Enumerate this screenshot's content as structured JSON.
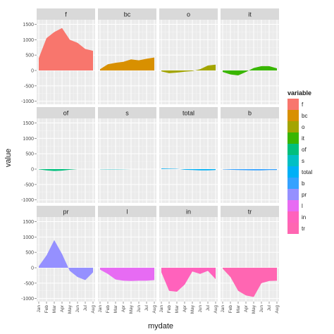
{
  "chart_data": {
    "type": "area",
    "facet_layout": "wrap",
    "xlabel": "mydate",
    "ylabel": "value",
    "x": [
      "Jan",
      "Feb",
      "Mar",
      "Apr",
      "May",
      "Jun",
      "Jul",
      "Aug"
    ],
    "ylim": [
      -1100,
      1650
    ],
    "yticks": [
      -1000,
      -500,
      0,
      500,
      1000,
      1500
    ],
    "ytick_labels": [
      "-1000",
      "-500",
      "0",
      "500",
      "1000",
      "1500"
    ],
    "legend_title": "variable",
    "legend_position": "right",
    "grid": true,
    "series": [
      {
        "name": "f",
        "color": "#F8766D",
        "values": [
          400,
          1050,
          1250,
          1380,
          1000,
          900,
          700,
          640
        ]
      },
      {
        "name": "bc",
        "color": "#D89000",
        "values": [
          40,
          200,
          250,
          280,
          360,
          330,
          380,
          420
        ]
      },
      {
        "name": "o",
        "color": "#A3A500",
        "values": [
          -30,
          -90,
          -70,
          -40,
          -20,
          40,
          160,
          190
        ]
      },
      {
        "name": "it",
        "color": "#39B600",
        "values": [
          -50,
          -130,
          -160,
          -50,
          80,
          140,
          140,
          70
        ]
      },
      {
        "name": "of",
        "color": "#00BF7D",
        "values": [
          -10,
          -40,
          -60,
          -50,
          -20,
          0,
          null,
          null
        ]
      },
      {
        "name": "s",
        "color": "#00BFC4",
        "values": [
          -5,
          -10,
          -10,
          -5,
          0,
          0,
          null,
          null
        ]
      },
      {
        "name": "total",
        "color": "#00B0F6",
        "values": [
          20,
          15,
          10,
          -20,
          -30,
          -40,
          -40,
          -30
        ]
      },
      {
        "name": "b",
        "color": "#35A2FF",
        "values": [
          -10,
          -20,
          -30,
          -35,
          -40,
          -40,
          -30,
          -30
        ]
      },
      {
        "name": "pr",
        "color": "#9590FF",
        "values": [
          50,
          400,
          900,
          450,
          -100,
          -300,
          -400,
          -150
        ]
      },
      {
        "name": "l",
        "color": "#E76BF3",
        "values": [
          -60,
          -200,
          -380,
          -420,
          -430,
          -420,
          -420,
          -400
        ]
      },
      {
        "name": "in",
        "color": "#FF62BC",
        "values": [
          -150,
          -750,
          -780,
          -550,
          -120,
          -200,
          -100,
          -370
        ]
      },
      {
        "name": "tr",
        "color": "#FF66B2",
        "values": [
          -30,
          -300,
          -750,
          -900,
          -950,
          -500,
          -430,
          -420
        ]
      }
    ]
  }
}
